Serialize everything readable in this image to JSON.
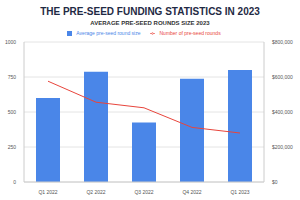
{
  "chart_data": {
    "type": "bar",
    "title": "THE PRE-SEED FUNDING STATISTICS IN 2023",
    "subtitle": "AVERAGE PRE-SEED ROUNDS SIZE 2023",
    "categories": [
      "Q1 2022",
      "Q2 2022",
      "Q3 2022",
      "Q4 2022",
      "Q1 2023"
    ],
    "series": [
      {
        "name": "Average pre-seed round size",
        "type": "bar",
        "color": "#4a86e8",
        "axis": "y2",
        "values": [
          480000,
          630000,
          340000,
          590000,
          640000
        ]
      },
      {
        "name": "Number of pre-seed rounds",
        "type": "line",
        "color": "#e8453c",
        "values": [
          720,
          570,
          530,
          390,
          350
        ]
      }
    ],
    "ylim": [
      0,
      1000
    ],
    "yticks": [
      0,
      250,
      500,
      750,
      1000
    ],
    "y2lim": [
      0,
      800000
    ],
    "y2ticks": [
      {
        "value": 0,
        "label": "$0"
      },
      {
        "value": 200000,
        "label": "$200,000"
      },
      {
        "value": 400000,
        "label": "$400,000"
      },
      {
        "value": 600000,
        "label": "$600,000"
      },
      {
        "value": 800000,
        "label": "$800,000"
      }
    ],
    "grid": true,
    "legend": "top"
  }
}
